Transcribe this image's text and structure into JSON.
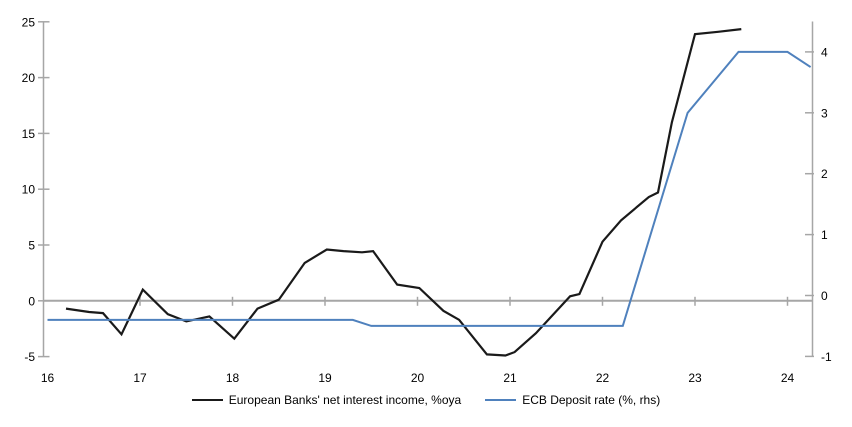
{
  "chart_data": {
    "type": "line",
    "title": "",
    "xlabel": "",
    "ylabel_left": "",
    "ylabel_right": "",
    "grid": false,
    "zero_line": true,
    "legend_position": "bottom",
    "x_axis": {
      "ticks": [
        "16",
        "17",
        "18",
        "19",
        "20",
        "21",
        "22",
        "23",
        "24"
      ],
      "range": [
        16,
        24.27
      ]
    },
    "left_axis": {
      "ticks": [
        "25",
        "20",
        "15",
        "10",
        "5",
        "0",
        "-5"
      ],
      "range": [
        -5,
        25
      ]
    },
    "right_axis": {
      "ticks": [
        "4",
        "3",
        "2",
        "1",
        "0",
        "-1"
      ],
      "range": [
        -1,
        4.45
      ]
    },
    "colors": {
      "axis": "#a6a6a6",
      "background": "#ffffff",
      "nii_line": "#1a1a1a",
      "ecb_line": "#4f81bd"
    },
    "series": [
      {
        "key": "nii-line",
        "name": "European Banks' net interest income, %oya",
        "axis": "left",
        "color": "#1a1a1a",
        "points": [
          [
            16.2,
            -0.7
          ],
          [
            16.45,
            -1.0
          ],
          [
            16.6,
            -1.1
          ],
          [
            16.8,
            -3.0
          ],
          [
            17.03,
            1.0
          ],
          [
            17.3,
            -1.2
          ],
          [
            17.5,
            -1.85
          ],
          [
            17.75,
            -1.4
          ],
          [
            18.02,
            -3.4
          ],
          [
            18.27,
            -0.7
          ],
          [
            18.5,
            0.1
          ],
          [
            18.78,
            3.4
          ],
          [
            19.02,
            4.6
          ],
          [
            19.2,
            4.45
          ],
          [
            19.4,
            4.35
          ],
          [
            19.52,
            4.45
          ],
          [
            19.78,
            1.45
          ],
          [
            20.02,
            1.15
          ],
          [
            20.28,
            -0.9
          ],
          [
            20.45,
            -1.7
          ],
          [
            20.75,
            -4.8
          ],
          [
            20.95,
            -4.9
          ],
          [
            21.05,
            -4.6
          ],
          [
            21.28,
            -2.9
          ],
          [
            21.65,
            0.4
          ],
          [
            21.75,
            0.6
          ],
          [
            22.0,
            5.3
          ],
          [
            22.2,
            7.2
          ],
          [
            22.5,
            9.3
          ],
          [
            22.6,
            9.7
          ],
          [
            22.75,
            16.0
          ],
          [
            23.0,
            23.9
          ],
          [
            23.25,
            24.1
          ],
          [
            23.5,
            24.35
          ]
        ]
      },
      {
        "key": "ecb-deposit-rate-line",
        "name": "ECB Deposit rate (%, rhs)",
        "axis": "right",
        "color": "#4f81bd",
        "points": [
          [
            16.0,
            -0.4
          ],
          [
            19.3,
            -0.4
          ],
          [
            19.5,
            -0.5
          ],
          [
            22.22,
            -0.5
          ],
          [
            22.92,
            3.0
          ],
          [
            23.47,
            4.0
          ],
          [
            24.0,
            4.0
          ],
          [
            24.25,
            3.75
          ]
        ]
      }
    ]
  }
}
